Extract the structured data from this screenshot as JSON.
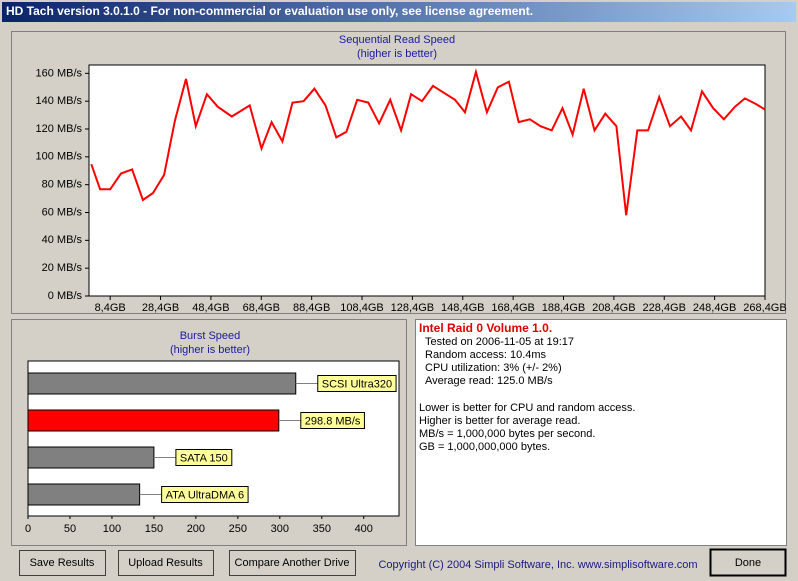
{
  "window": {
    "title": "HD Tach version 3.0.1.0  - For non-commercial or evaluation use only, see license agreement."
  },
  "chart_data": [
    {
      "type": "line",
      "title": "Sequential Read Speed",
      "subtitle": "(higher is better)",
      "color": "#ff0000",
      "x": [
        0.9,
        4.4,
        8.4,
        12.7,
        17.1,
        21.4,
        25.4,
        29.8,
        34.1,
        38.5,
        42.4,
        46.8,
        51.1,
        56.7,
        63.8,
        68.5,
        72.5,
        76.8,
        80.8,
        85.2,
        89.5,
        93.9,
        98.2,
        102.2,
        106.5,
        110.9,
        115.2,
        119.6,
        123.9,
        127.9,
        132.2,
        136.6,
        140.9,
        145.3,
        149.3,
        153.6,
        158,
        162.3,
        166.7,
        170.6,
        175,
        179.3,
        183.7,
        188,
        192,
        196.4,
        200.7,
        205,
        209.4,
        213.3,
        217.7,
        222,
        226.4,
        230.7,
        235.1,
        239,
        243.4,
        247.8,
        252.1,
        256.5,
        260.4,
        264.8,
        268.4
      ],
      "values": [
        94.7,
        76.7,
        76.7,
        88,
        91,
        69,
        74,
        87,
        126,
        156,
        122,
        145,
        136,
        129,
        137,
        106,
        125,
        111,
        139,
        140,
        149,
        137,
        114,
        118,
        141,
        139,
        124,
        141,
        119,
        145,
        140,
        151,
        146,
        141,
        132,
        161,
        132,
        150,
        154,
        125,
        127,
        122,
        119,
        135,
        116,
        149,
        119,
        131,
        122,
        58,
        119,
        119,
        143,
        122,
        129,
        119,
        147,
        135,
        127,
        136,
        142,
        138,
        134
      ],
      "xlim": [
        0,
        268.4
      ],
      "ylim": [
        0,
        166
      ],
      "xticks": [
        {
          "value": 8.4,
          "label": "8,4GB"
        },
        {
          "value": 28.4,
          "label": "28,4GB"
        },
        {
          "value": 48.4,
          "label": "48,4GB"
        },
        {
          "value": 68.4,
          "label": "68,4GB"
        },
        {
          "value": 88.4,
          "label": "88,4GB"
        },
        {
          "value": 108.4,
          "label": "108,4GB"
        },
        {
          "value": 128.4,
          "label": "128,4GB"
        },
        {
          "value": 148.4,
          "label": "148,4GB"
        },
        {
          "value": 168.4,
          "label": "168,4GB"
        },
        {
          "value": 188.4,
          "label": "188,4GB"
        },
        {
          "value": 208.4,
          "label": "208,4GB"
        },
        {
          "value": 228.4,
          "label": "228,4GB"
        },
        {
          "value": 248.4,
          "label": "248,4GB"
        },
        {
          "value": 268.4,
          "label": "268,4GB"
        }
      ],
      "yticks": [
        {
          "value": 0,
          "label": "0 MB/s"
        },
        {
          "value": 20,
          "label": "20 MB/s"
        },
        {
          "value": 40,
          "label": "40 MB/s"
        },
        {
          "value": 60,
          "label": "60 MB/s"
        },
        {
          "value": 80,
          "label": "80 MB/s"
        },
        {
          "value": 100,
          "label": "100 MB/s"
        },
        {
          "value": 120,
          "label": "120 MB/s"
        },
        {
          "value": 140,
          "label": "140 MB/s"
        },
        {
          "value": 160,
          "label": "160 MB/s"
        }
      ]
    },
    {
      "type": "bar",
      "orientation": "horizontal",
      "title": "Burst Speed",
      "subtitle": "(higher is better)",
      "categories": [
        "SCSI Ultra320",
        null,
        "SATA 150",
        "ATA UltraDMA 6"
      ],
      "values": [
        319,
        298.8,
        150,
        133
      ],
      "value_labels": [
        null,
        "298.8 MB/s",
        null,
        null
      ],
      "colors": [
        "#808080",
        "#ff0000",
        "#808080",
        "#808080"
      ],
      "xlim": [
        0,
        442
      ],
      "xticks": [
        0,
        50,
        100,
        150,
        200,
        250,
        300,
        350,
        400
      ]
    }
  ],
  "info": {
    "title": "Intel Raid 0 Volume 1.0.",
    "lines": [
      "Tested on 2006-11-05 at 19:17",
      "Random access: 10.4ms",
      "CPU utilization: 3% (+/- 2%)",
      "Average read: 125.0 MB/s"
    ],
    "notes": [
      "Lower is better for CPU and random access.",
      "Higher is better for average read.",
      "MB/s = 1,000,000 bytes per second.",
      "GB = 1,000,000,000 bytes."
    ]
  },
  "buttons": [
    "Save Results",
    "Upload Results",
    "Compare Another Drive"
  ],
  "copyright": "Copyright (C) 2004 Simpli Software, Inc. www.simplisoftware.com",
  "done_button": "Done"
}
